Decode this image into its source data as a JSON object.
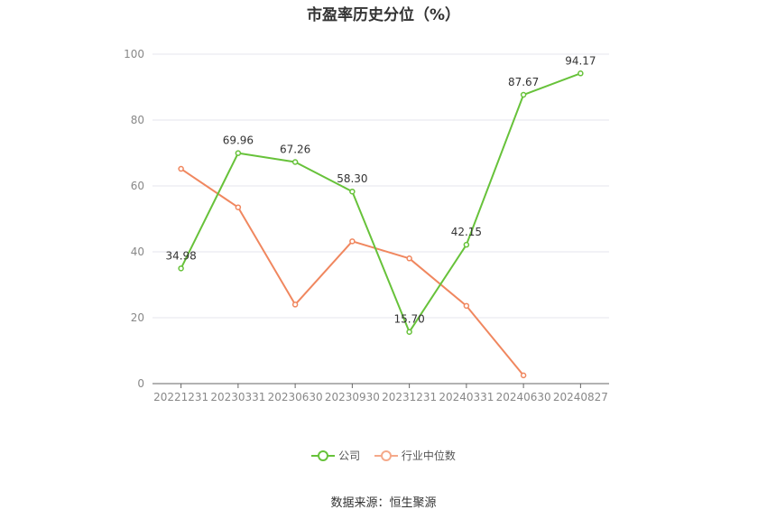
{
  "chart_data": {
    "type": "line",
    "title": "市盈率历史分位（%）",
    "categories": [
      "20221231",
      "20230331",
      "20230630",
      "20230930",
      "20231231",
      "20240331",
      "20240630",
      "20240827"
    ],
    "ylim": [
      0,
      100
    ],
    "yticks": [
      0,
      20,
      40,
      60,
      80,
      100
    ],
    "grid": true,
    "legend_position": "bottom",
    "series": [
      {
        "name": "公司",
        "color": "#67c23a",
        "values": [
          34.98,
          69.96,
          67.26,
          58.3,
          15.7,
          42.15,
          87.67,
          94.17
        ],
        "labels": [
          "34.98",
          "69.96",
          "67.26",
          "58.30",
          "15.70",
          "42.15",
          "87.67",
          "94.17"
        ]
      },
      {
        "name": "行业中位数",
        "color": "#f0875f",
        "values": [
          65.2,
          53.5,
          24.0,
          43.2,
          38.0,
          23.6,
          2.5,
          null
        ]
      }
    ]
  },
  "source": "数据来源：恒生聚源"
}
